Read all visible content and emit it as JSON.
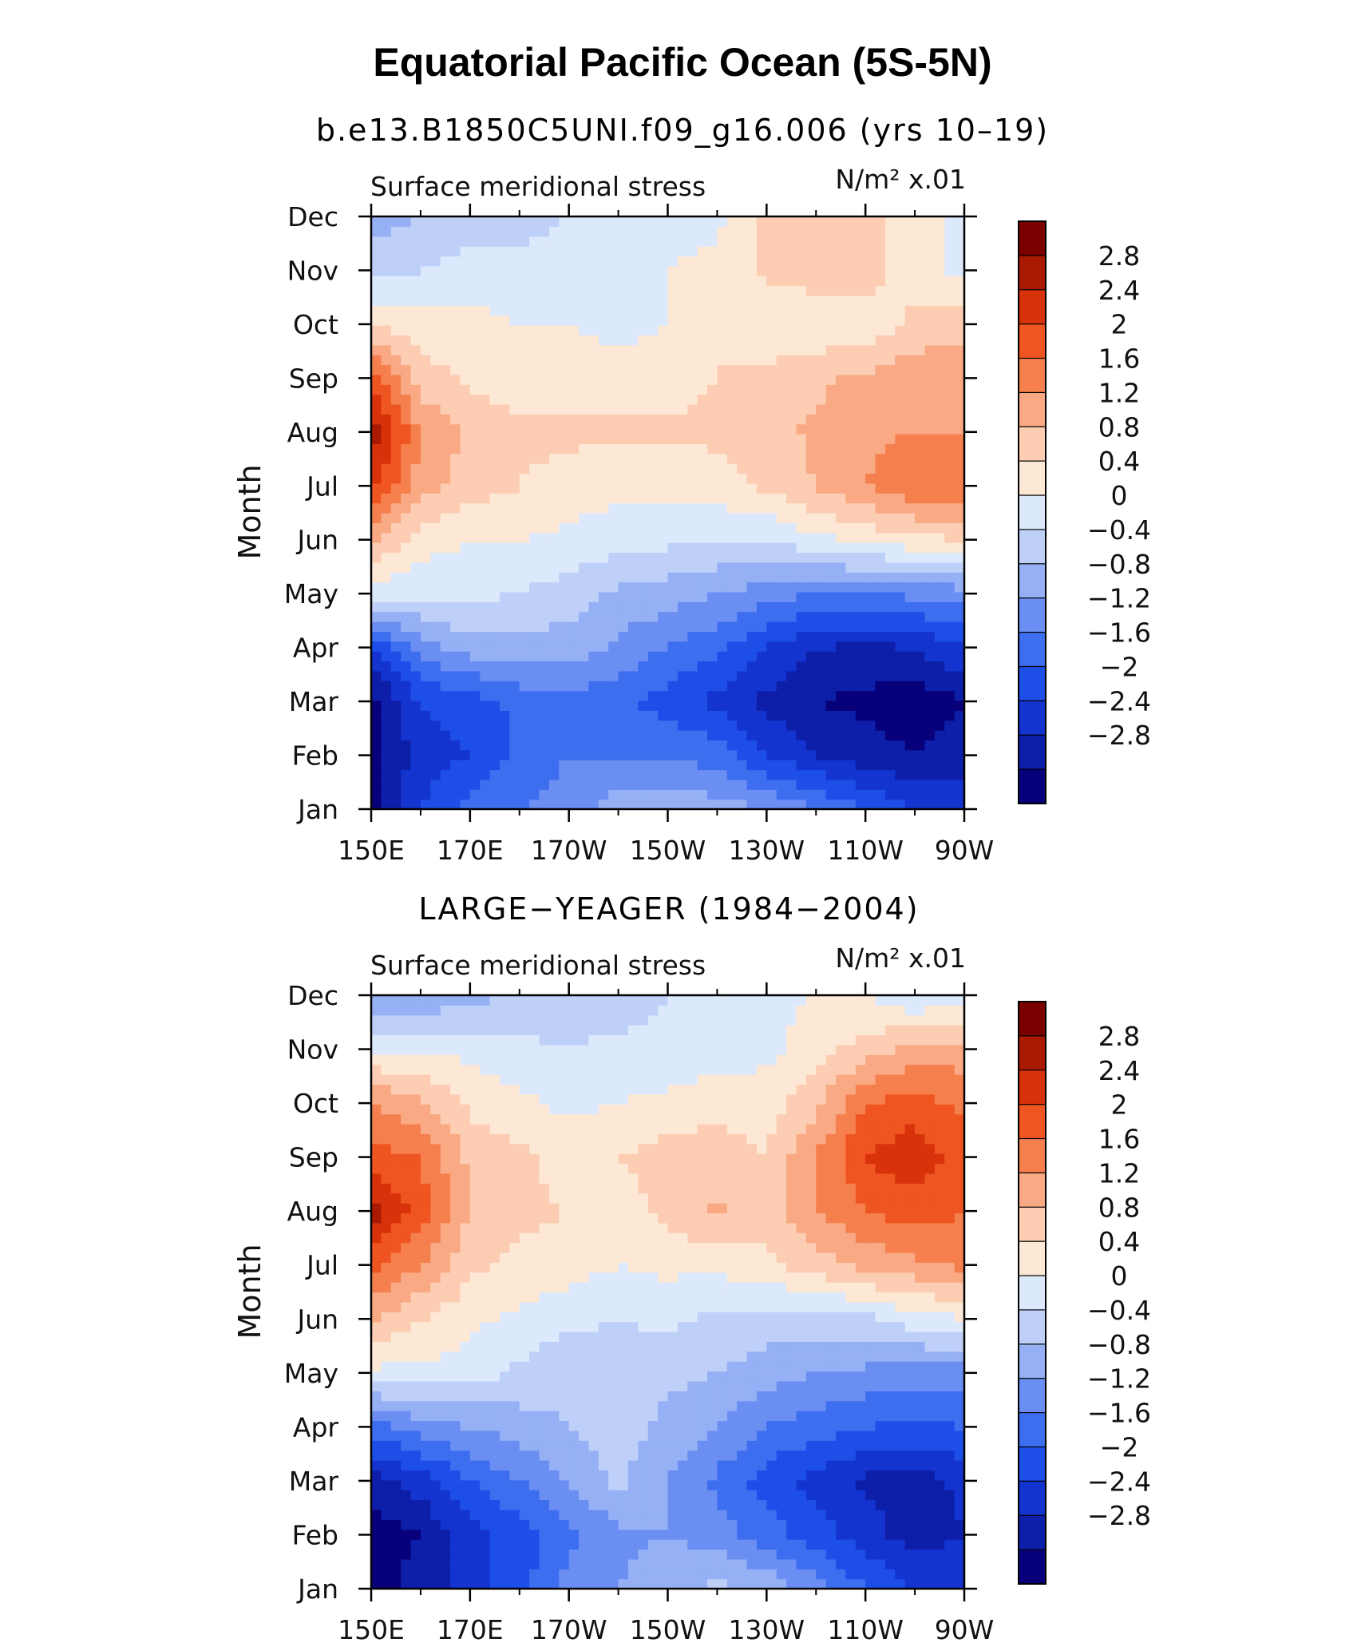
{
  "title": "Equatorial Pacific Ocean (5S-5N)",
  "chart_data": [
    {
      "type": "heatmap",
      "title": "b.e13.B1850C5UNI.f09_g16.006 (yrs 10–19)",
      "left_label": "Surface meridional stress",
      "units_label": "N/m² x.01",
      "ylabel": "Month",
      "xlabel": "",
      "x_tick_labels": [
        "150E",
        "170E",
        "170W",
        "150W",
        "130W",
        "110W",
        "90W"
      ],
      "x_lon_range": [
        150,
        270
      ],
      "y_tick_labels": [
        "Jan",
        "Feb",
        "Mar",
        "Apr",
        "May",
        "Jun",
        "Jul",
        "Aug",
        "Sep",
        "Oct",
        "Nov",
        "Dec"
      ],
      "x": [
        150,
        160,
        170,
        180,
        190,
        200,
        210,
        220,
        230,
        240,
        250,
        260,
        270
      ],
      "values": [
        [
          -3.0,
          -2.0,
          -1.4,
          -1.2,
          -1.0,
          -0.6,
          -0.5,
          -0.6,
          -0.8,
          -1.2,
          -1.6,
          -2.0,
          -2.2
        ],
        [
          -3.0,
          -2.2,
          -2.0,
          -1.5,
          -1.2,
          -1.2,
          -1.2,
          -1.4,
          -2.0,
          -2.4,
          -2.6,
          -2.8,
          -2.6
        ],
        [
          -3.0,
          -2.0,
          -1.8,
          -1.5,
          -1.3,
          -1.5,
          -1.8,
          -2.1,
          -2.5,
          -2.8,
          -2.9,
          -3.1,
          -2.8
        ],
        [
          -2.0,
          -1.0,
          -0.6,
          -0.5,
          -0.6,
          -0.9,
          -1.2,
          -1.5,
          -2.0,
          -2.4,
          -2.5,
          -2.4,
          -2.0
        ],
        [
          0.2,
          0.1,
          0.1,
          0.0,
          -0.2,
          -0.5,
          -0.6,
          -0.8,
          -1.0,
          -1.2,
          -1.2,
          -1.1,
          -1.0
        ],
        [
          1.3,
          0.6,
          0.4,
          0.4,
          0.3,
          0.2,
          0.1,
          0.0,
          0.0,
          0.3,
          0.5,
          0.7,
          0.8
        ],
        [
          2.5,
          1.4,
          1.0,
          0.8,
          0.6,
          0.5,
          0.5,
          0.6,
          0.9,
          1.2,
          1.6,
          1.9,
          2.0
        ],
        [
          3.1,
          1.6,
          1.1,
          0.9,
          0.9,
          0.9,
          0.9,
          0.9,
          1.0,
          1.3,
          1.5,
          1.6,
          1.6
        ],
        [
          2.2,
          1.0,
          0.7,
          0.6,
          0.6,
          0.5,
          0.6,
          0.8,
          0.9,
          1.1,
          1.3,
          1.5,
          1.5
        ],
        [
          0.8,
          0.6,
          0.5,
          0.4,
          0.4,
          0.3,
          0.4,
          0.8,
          0.5,
          0.5,
          0.5,
          0.9,
          1.0
        ],
        [
          -0.1,
          0.0,
          0.2,
          0.2,
          0.2,
          0.3,
          0.4,
          0.5,
          0.9,
          1.0,
          1.0,
          0.6,
          0.3
        ],
        [
          -0.6,
          -0.4,
          -0.3,
          -0.2,
          0.0,
          0.2,
          0.3,
          0.3,
          0.9,
          1.0,
          1.0,
          0.5,
          0.3
        ]
      ],
      "colorbar_labels": [
        "2.8",
        "2.4",
        "2",
        "1.6",
        "1.2",
        "0.8",
        "0.4",
        "0",
        "−0.4",
        "−0.8",
        "−1.2",
        "−1.6",
        "−2",
        "−2.4",
        "−2.8"
      ]
    },
    {
      "type": "heatmap",
      "title": "LARGE−YEAGER (1984−2004)",
      "left_label": "Surface meridional stress",
      "units_label": "N/m² x.01",
      "ylabel": "Month",
      "xlabel": "",
      "x_tick_labels": [
        "150E",
        "170E",
        "170W",
        "150W",
        "130W",
        "110W",
        "90W"
      ],
      "x_lon_range": [
        150,
        270
      ],
      "y_tick_labels": [
        "Jan",
        "Feb",
        "Mar",
        "Apr",
        "May",
        "Jun",
        "Jul",
        "Aug",
        "Sep",
        "Oct",
        "Nov",
        "Dec"
      ],
      "x": [
        150,
        160,
        170,
        180,
        190,
        200,
        210,
        220,
        230,
        240,
        250,
        260,
        270
      ],
      "values": [
        [
          -3.0,
          -2.6,
          -2.2,
          -1.8,
          -1.0,
          -0.8,
          -0.5,
          -0.3,
          -0.5,
          -1.0,
          -1.6,
          -2.0,
          -2.0
        ],
        [
          -3.0,
          -2.8,
          -2.2,
          -1.8,
          -1.3,
          -0.9,
          -0.8,
          -1.0,
          -1.4,
          -1.8,
          -2.2,
          -2.6,
          -2.4
        ],
        [
          -2.6,
          -2.2,
          -1.6,
          -1.2,
          -0.8,
          -0.3,
          -0.8,
          -1.3,
          -1.8,
          -2.2,
          -2.5,
          -2.6,
          -2.3
        ],
        [
          -1.4,
          -1.0,
          -0.8,
          -0.6,
          -0.4,
          -0.2,
          -0.5,
          -0.8,
          -1.2,
          -1.4,
          -1.6,
          -1.7,
          -1.6
        ],
        [
          0.3,
          0.3,
          0.2,
          -0.1,
          -0.3,
          -0.3,
          -0.3,
          -0.4,
          -0.6,
          -0.8,
          -0.9,
          -1.0,
          -1.0
        ],
        [
          1.2,
          0.8,
          0.5,
          0.3,
          0.1,
          0.0,
          0.1,
          -0.1,
          -0.2,
          -0.2,
          -0.1,
          0.2,
          0.4
        ],
        [
          2.2,
          1.6,
          0.9,
          0.7,
          0.6,
          0.4,
          0.5,
          0.5,
          0.7,
          1.0,
          1.3,
          1.5,
          1.7
        ],
        [
          3.0,
          2.2,
          1.2,
          0.9,
          0.8,
          0.6,
          0.9,
          1.3,
          1.0,
          1.6,
          2.0,
          2.2,
          2.0
        ],
        [
          2.2,
          2.0,
          1.1,
          0.9,
          0.6,
          0.8,
          1.0,
          1.0,
          0.8,
          1.6,
          2.4,
          2.7,
          2.2
        ],
        [
          1.6,
          1.3,
          0.7,
          0.5,
          0.3,
          0.4,
          0.5,
          0.7,
          0.6,
          1.1,
          2.0,
          2.2,
          1.9
        ],
        [
          0.4,
          0.3,
          0.3,
          0.1,
          0.0,
          0.1,
          0.1,
          0.1,
          0.3,
          0.6,
          1.0,
          1.3,
          1.4
        ],
        [
          -0.9,
          -0.7,
          -0.6,
          -0.3,
          -0.2,
          -0.2,
          0.0,
          0.1,
          0.3,
          0.4,
          0.4,
          0.0,
          0.3
        ]
      ],
      "colorbar_labels": [
        "2.8",
        "2.4",
        "2",
        "1.6",
        "1.2",
        "0.8",
        "0.4",
        "0",
        "−0.4",
        "−0.8",
        "−1.2",
        "−1.6",
        "−2",
        "−2.4",
        "−2.8"
      ]
    }
  ],
  "levels": [
    -2.8,
    -2.4,
    -2.0,
    -1.6,
    -1.2,
    -0.8,
    -0.4,
    0.0,
    0.4,
    0.8,
    1.2,
    1.6,
    2.0,
    2.4,
    2.8
  ],
  "palette": [
    "#08007a",
    "#0d1ea8",
    "#1434d0",
    "#1e4ee8",
    "#3e6ef0",
    "#6a8ef2",
    "#95b0f5",
    "#bed0f8",
    "#dce8fb",
    "#fde8d6",
    "#fccdb2",
    "#f9a984",
    "#f5804e",
    "#ef5520",
    "#d8320b",
    "#aa1a02",
    "#7a0000"
  ]
}
